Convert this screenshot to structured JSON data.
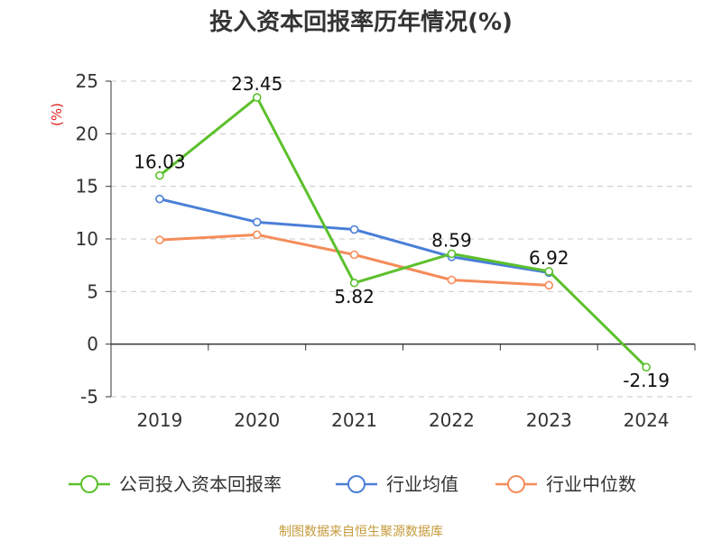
{
  "chart_data": {
    "type": "line",
    "title": "投入资本回报率历年情况(%)",
    "ylabel": "(%)",
    "categories": [
      "2019",
      "2020",
      "2021",
      "2022",
      "2023",
      "2024"
    ],
    "ylim": [
      -5,
      25
    ],
    "yticks": [
      "25",
      "20",
      "15",
      "10",
      "5",
      "0",
      "-5"
    ],
    "ytick_values": [
      25,
      20,
      15,
      10,
      5,
      0,
      -5
    ],
    "grid": true,
    "legend_position": "bottom",
    "series": [
      {
        "name": "公司投入资本回报率",
        "color": "#5cc02c",
        "values": [
          16.03,
          23.45,
          5.82,
          8.59,
          6.92,
          -2.19
        ],
        "labels": [
          "16.03",
          "23.45",
          "5.82",
          "8.59",
          "6.92",
          "-2.19"
        ]
      },
      {
        "name": "行业均值",
        "color": "#4a7fd8",
        "values": [
          13.8,
          11.6,
          10.9,
          8.3,
          6.8,
          null
        ]
      },
      {
        "name": "行业中位数",
        "color": "#f58c5a",
        "values": [
          9.9,
          10.4,
          8.5,
          6.1,
          5.6,
          null
        ]
      }
    ]
  },
  "footer": {
    "source": "制图数据来自恒生聚源数据库"
  }
}
